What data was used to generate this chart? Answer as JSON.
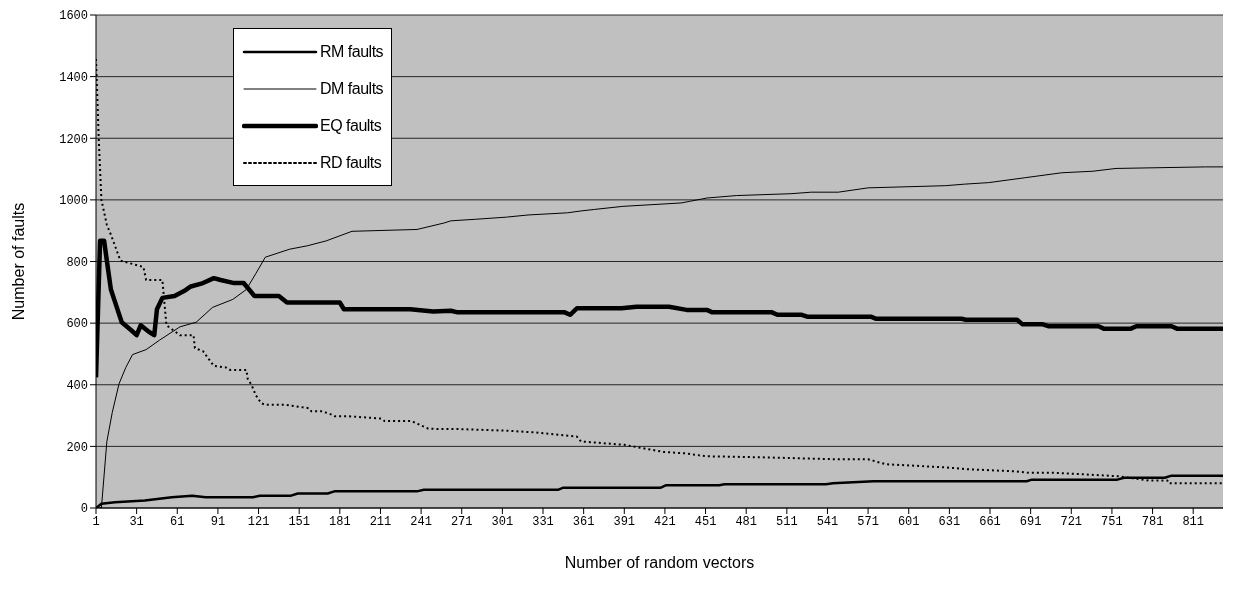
{
  "chart_data": {
    "type": "line",
    "xlabel": "Number of random vectors",
    "ylabel": "Number of faults",
    "xlim": [
      1,
      833
    ],
    "xticks": [
      1,
      31,
      61,
      91,
      121,
      151,
      181,
      211,
      241,
      271,
      301,
      331,
      361,
      391,
      421,
      451,
      481,
      511,
      541,
      571,
      601,
      631,
      661,
      691,
      721,
      751,
      781,
      811
    ],
    "ylim": [
      0,
      1600
    ],
    "yticks": [
      0,
      200,
      400,
      600,
      800,
      1000,
      1200,
      1400,
      1600
    ],
    "grid": "y",
    "legend": "top left",
    "marker": "none",
    "series": [
      {
        "name": "RM faults",
        "color": "#000000",
        "line_style": "solid",
        "x": [
          1,
          5,
          15,
          37,
          57,
          72,
          82,
          117,
          122,
          145,
          150,
          172,
          177,
          238,
          243,
          342,
          346,
          418,
          422,
          461,
          465,
          540,
          545,
          575,
          688,
          692,
          755,
          760,
          790,
          795,
          833
        ],
        "values": [
          0,
          14,
          19,
          24,
          35,
          40,
          35,
          35,
          40,
          40,
          47,
          47,
          54,
          54,
          59,
          59,
          66,
          66,
          74,
          74,
          77,
          77,
          80,
          87,
          87,
          92,
          92,
          98,
          98,
          105,
          105
        ]
      },
      {
        "name": "DM faults",
        "color": "#000000",
        "line_style": "solid",
        "x": [
          1,
          5,
          9,
          13,
          18,
          23,
          28,
          38,
          48,
          63,
          75,
          87,
          102,
          112,
          119,
          126,
          144,
          157,
          171,
          190,
          238,
          258,
          263,
          281,
          304,
          320,
          349,
          359,
          369,
          390,
          433,
          439,
          452,
          474,
          514,
          529,
          549,
          571,
          628,
          642,
          660,
          687,
          714,
          737,
          754,
          820,
          833
        ],
        "values": [
          0,
          0,
          215,
          310,
          403,
          456,
          498,
          514,
          545,
          588,
          603,
          651,
          677,
          709,
          761,
          814,
          840,
          851,
          867,
          898,
          904,
          925,
          932,
          937,
          944,
          951,
          958,
          964,
          969,
          979,
          990,
          995,
          1006,
          1014,
          1020,
          1025,
          1025,
          1039,
          1046,
          1051,
          1056,
          1072,
          1088,
          1093,
          1102,
          1107,
          1107
        ]
      },
      {
        "name": "EQ faults",
        "color": "#000000",
        "line_style": "solid",
        "x": [
          1,
          4,
          7,
          9,
          12,
          16,
          20,
          27,
          31,
          34,
          40,
          44,
          46,
          50,
          59,
          66,
          71,
          80,
          88,
          93,
          103,
          110,
          118,
          136,
          142,
          181,
          184,
          233,
          250,
          263,
          268,
          347,
          351,
          356,
          389,
          400,
          424,
          437,
          452,
          456,
          500,
          504,
          522,
          526,
          549,
          573,
          577,
          640,
          643,
          681,
          685,
          700,
          704,
          741,
          745,
          765,
          769,
          795,
          799,
          833
        ],
        "values": [
          424,
          867,
          867,
          803,
          709,
          656,
          603,
          577,
          561,
          593,
          572,
          561,
          645,
          682,
          688,
          704,
          719,
          730,
          746,
          740,
          730,
          730,
          688,
          688,
          667,
          667,
          645,
          645,
          638,
          640,
          635,
          635,
          627,
          648,
          648,
          653,
          653,
          643,
          643,
          635,
          635,
          627,
          627,
          621,
          621,
          621,
          614,
          614,
          611,
          611,
          596,
          596,
          590,
          590,
          582,
          582,
          590,
          590,
          582,
          582
        ]
      },
      {
        "name": "RD faults",
        "color": "#000000",
        "line_style": "dotted",
        "x": [
          1,
          3,
          5,
          9,
          12,
          19,
          36,
          38,
          50,
          53,
          63,
          73,
          74,
          80,
          88,
          97,
          100,
          112,
          113,
          116,
          119,
          123,
          126,
          141,
          158,
          160,
          168,
          175,
          177,
          187,
          212,
          214,
          234,
          239,
          246,
          253,
          270,
          304,
          326,
          342,
          356,
          359,
          391,
          420,
          437,
          451,
          497,
          549,
          571,
          584,
          628,
          644,
          679,
          690,
          710,
          756,
          778,
          792,
          793,
          833
        ],
        "values": [
          1457,
          1200,
          1000,
          919,
          887,
          803,
          782,
          740,
          740,
          593,
          561,
          561,
          519,
          509,
          461,
          456,
          448,
          448,
          419,
          398,
          366,
          340,
          335,
          335,
          324,
          314,
          314,
          303,
          298,
          298,
          290,
          282,
          282,
          272,
          258,
          256,
          256,
          251,
          245,
          238,
          232,
          216,
          205,
          182,
          177,
          168,
          164,
          158,
          158,
          142,
          132,
          126,
          119,
          114,
          114,
          103,
          89,
          89,
          80,
          80
        ]
      }
    ]
  }
}
